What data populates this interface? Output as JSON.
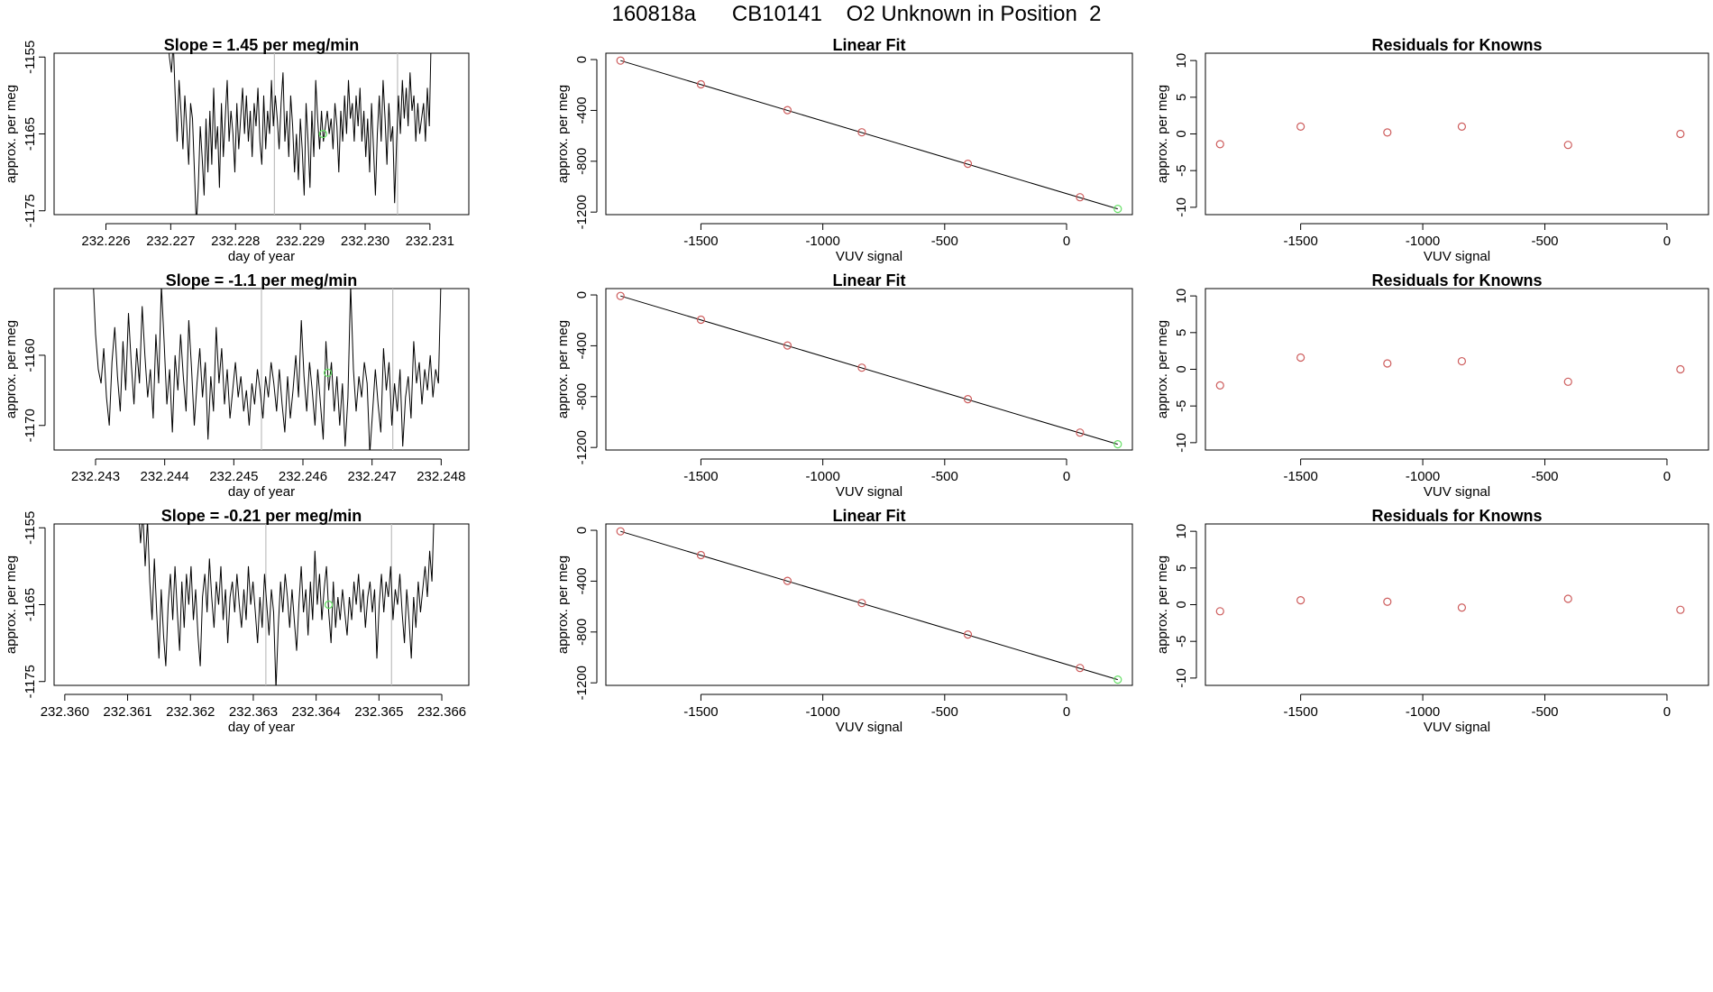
{
  "page_title": "160818a      CB10141    O2 Unknown in Position  2",
  "colors": {
    "axis": "#000000",
    "trace": "#000000",
    "vline": "#bebebe",
    "point_red": "#cd5c5c",
    "point_green": "#66e066"
  },
  "chart_data": [
    {
      "type": "line",
      "name": "timeseries-row-1",
      "title": "Slope =  1.45  per meg/min",
      "xlabel": "day of year",
      "ylabel": "approx. per meg",
      "xlim": [
        232.2252,
        232.2316
      ],
      "ylim": [
        -1175.5,
        -1154.5
      ],
      "xticks": [
        232.226,
        232.227,
        232.228,
        232.229,
        232.23,
        232.231
      ],
      "xtick_labels": [
        "232.226",
        "232.227",
        "232.228",
        "232.229",
        "232.230",
        "232.231"
      ],
      "yticks": [
        -1155,
        -1165,
        -1175
      ],
      "ytick_labels": [
        "-1155",
        "-1165",
        "-1175"
      ],
      "vlines": [
        232.2286,
        232.2305
      ],
      "trace": {
        "x_start": 232.22695,
        "x_end": 232.23102,
        "y": [
          -1152,
          -1155,
          -1157,
          -1153,
          -1160,
          -1166,
          -1158,
          -1162,
          -1167,
          -1160,
          -1164,
          -1169,
          -1161,
          -1163,
          -1170,
          -1177,
          -1172,
          -1164,
          -1168,
          -1173,
          -1163,
          -1170,
          -1162,
          -1169,
          -1159,
          -1167,
          -1164,
          -1172,
          -1161,
          -1168,
          -1163,
          -1158,
          -1166,
          -1162,
          -1165,
          -1170,
          -1161,
          -1167,
          -1163,
          -1159,
          -1165,
          -1160,
          -1166,
          -1162,
          -1168,
          -1161,
          -1164,
          -1159,
          -1166,
          -1169,
          -1160,
          -1167,
          -1162,
          -1165,
          -1158,
          -1164,
          -1160,
          -1163,
          -1167,
          -1161,
          -1157,
          -1166,
          -1162,
          -1168,
          -1160,
          -1164,
          -1170,
          -1165,
          -1171,
          -1163,
          -1167,
          -1173,
          -1161,
          -1166,
          -1172,
          -1162,
          -1168,
          -1158,
          -1163,
          -1167,
          -1162,
          -1166,
          -1164,
          -1162,
          -1165,
          -1163,
          -1167,
          -1161,
          -1164,
          -1170,
          -1162,
          -1166,
          -1160,
          -1165,
          -1158,
          -1163,
          -1161,
          -1166,
          -1160,
          -1164,
          -1159,
          -1166,
          -1162,
          -1168,
          -1163,
          -1170,
          -1161,
          -1167,
          -1173,
          -1165,
          -1160,
          -1166,
          -1158,
          -1163,
          -1169,
          -1161,
          -1166,
          -1164,
          -1174,
          -1166,
          -1160,
          -1165,
          -1158,
          -1163,
          -1159,
          -1164,
          -1157,
          -1162,
          -1160,
          -1166,
          -1161,
          -1165,
          -1163,
          -1161,
          -1166,
          -1159,
          -1164,
          -1152
        ]
      },
      "highlight": {
        "x": 232.22935,
        "y": -1165
      }
    },
    {
      "type": "scatter",
      "name": "linear-fit-row-1",
      "title": "Linear Fit",
      "xlabel": "VUV signal",
      "ylabel": "approx. per meg",
      "xlim": [
        -1890,
        270
      ],
      "ylim": [
        -1220,
        50
      ],
      "xticks": [
        -1500,
        -1000,
        -500,
        0
      ],
      "xtick_labels": [
        "-1500",
        "-1000",
        "-500",
        "0"
      ],
      "yticks": [
        0,
        -400,
        -800,
        -1200
      ],
      "ytick_labels": [
        "0",
        "-400",
        "-800",
        "-1200"
      ],
      "fit_line": {
        "x": [
          -1830,
          210
        ],
        "y": [
          -8,
          -1175
        ]
      },
      "points_red": {
        "x": [
          -1830,
          -1500,
          -1145,
          -840,
          -405,
          55
        ],
        "y": [
          -8,
          -195,
          -398,
          -572,
          -820,
          -1083
        ]
      },
      "points_green": {
        "x": [
          210
        ],
        "y": [
          -1175
        ]
      }
    },
    {
      "type": "scatter",
      "name": "residuals-row-1",
      "title": "Residuals for Knowns",
      "xlabel": "VUV signal",
      "ylabel": "approx. per meg",
      "xlim": [
        -1890,
        170
      ],
      "ylim": [
        -11,
        11
      ],
      "xticks": [
        -1500,
        -1000,
        -500,
        0
      ],
      "xtick_labels": [
        "-1500",
        "-1000",
        "-500",
        "0"
      ],
      "yticks": [
        10,
        5,
        0,
        -5,
        -10
      ],
      "ytick_labels": [
        "10",
        "5",
        "0",
        "-5",
        "-10"
      ],
      "points_red": {
        "x": [
          -1830,
          -1500,
          -1145,
          -840,
          -405,
          55
        ],
        "y": [
          -1.4,
          1.0,
          0.2,
          1.0,
          -1.5,
          0.0
        ]
      }
    },
    {
      "type": "line",
      "name": "timeseries-row-2",
      "title": "Slope =  -1.1  per meg/min",
      "xlabel": "day of year",
      "ylabel": "approx. per meg",
      "xlim": [
        232.2424,
        232.2484
      ],
      "ylim": [
        -1173.5,
        -1150.5
      ],
      "xticks": [
        232.243,
        232.244,
        232.245,
        232.246,
        232.247,
        232.248
      ],
      "xtick_labels": [
        "232.243",
        "232.244",
        "232.245",
        "232.246",
        "232.247",
        "232.248"
      ],
      "yticks": [
        -1160,
        -1170
      ],
      "ytick_labels": [
        "-1160",
        "-1170"
      ],
      "vlines": [
        232.2454,
        232.2473
      ],
      "trace": {
        "x_start": 232.24296,
        "x_end": 232.248,
        "y": [
          -1148,
          -1157,
          -1162,
          -1164,
          -1159,
          -1166,
          -1170,
          -1161,
          -1156,
          -1163,
          -1168,
          -1158,
          -1165,
          -1154,
          -1161,
          -1167,
          -1159,
          -1164,
          -1153,
          -1160,
          -1166,
          -1162,
          -1169,
          -1157,
          -1164,
          -1150,
          -1158,
          -1167,
          -1162,
          -1171,
          -1160,
          -1165,
          -1157,
          -1163,
          -1168,
          -1155,
          -1162,
          -1170,
          -1164,
          -1159,
          -1166,
          -1161,
          -1172,
          -1163,
          -1168,
          -1156,
          -1164,
          -1159,
          -1167,
          -1162,
          -1169,
          -1165,
          -1161,
          -1166,
          -1163,
          -1168,
          -1165,
          -1170,
          -1164,
          -1167,
          -1162,
          -1165,
          -1169,
          -1163,
          -1166,
          -1161,
          -1164,
          -1168,
          -1162,
          -1167,
          -1171,
          -1163,
          -1169,
          -1165,
          -1160,
          -1166,
          -1155,
          -1163,
          -1168,
          -1161,
          -1165,
          -1170,
          -1162,
          -1167,
          -1172,
          -1158,
          -1165,
          -1161,
          -1168,
          -1163,
          -1170,
          -1164,
          -1173,
          -1166,
          -1150,
          -1162,
          -1168,
          -1163,
          -1166,
          -1161,
          -1164,
          -1174,
          -1168,
          -1162,
          -1167,
          -1171,
          -1159,
          -1165,
          -1161,
          -1170,
          -1164,
          -1168,
          -1162,
          -1173,
          -1166,
          -1163,
          -1169,
          -1158,
          -1164,
          -1161,
          -1167,
          -1162,
          -1165,
          -1160,
          -1166,
          -1162,
          -1164,
          -1148
        ]
      },
      "highlight": {
        "x": 232.24636,
        "y": -1162.5
      }
    },
    {
      "type": "scatter",
      "name": "linear-fit-row-2",
      "title": "Linear Fit",
      "xlabel": "VUV signal",
      "ylabel": "approx. per meg",
      "xlim": [
        -1890,
        270
      ],
      "ylim": [
        -1220,
        50
      ],
      "xticks": [
        -1500,
        -1000,
        -500,
        0
      ],
      "xtick_labels": [
        "-1500",
        "-1000",
        "-500",
        "0"
      ],
      "yticks": [
        0,
        -400,
        -800,
        -1200
      ],
      "ytick_labels": [
        "0",
        "-400",
        "-800",
        "-1200"
      ],
      "fit_line": {
        "x": [
          -1830,
          210
        ],
        "y": [
          -8,
          -1175
        ]
      },
      "points_red": {
        "x": [
          -1830,
          -1500,
          -1145,
          -840,
          -405,
          55
        ],
        "y": [
          -8,
          -195,
          -398,
          -572,
          -820,
          -1083
        ]
      },
      "points_green": {
        "x": [
          210
        ],
        "y": [
          -1175
        ]
      }
    },
    {
      "type": "scatter",
      "name": "residuals-row-2",
      "title": "Residuals for Knowns",
      "xlabel": "VUV signal",
      "ylabel": "approx. per meg",
      "xlim": [
        -1890,
        170
      ],
      "ylim": [
        -11,
        11
      ],
      "xticks": [
        -1500,
        -1000,
        -500,
        0
      ],
      "xtick_labels": [
        "-1500",
        "-1000",
        "-500",
        "0"
      ],
      "yticks": [
        10,
        5,
        0,
        -5,
        -10
      ],
      "ytick_labels": [
        "10",
        "5",
        "0",
        "-5",
        "-10"
      ],
      "points_red": {
        "x": [
          -1830,
          -1500,
          -1145,
          -840,
          -405,
          55
        ],
        "y": [
          -2.2,
          1.6,
          0.8,
          1.1,
          -1.7,
          0.0
        ]
      }
    },
    {
      "type": "line",
      "name": "timeseries-row-3",
      "title": "Slope =  -0.21  per meg/min",
      "xlabel": "day of year",
      "ylabel": "approx. per meg",
      "xlim": [
        232.35983,
        232.36643
      ],
      "ylim": [
        -1175.5,
        -1154.5
      ],
      "xticks": [
        232.36,
        232.361,
        232.362,
        232.363,
        232.364,
        232.365,
        232.366
      ],
      "xtick_labels": [
        "232.360",
        "232.361",
        "232.362",
        "232.363",
        "232.364",
        "232.365",
        "232.366"
      ],
      "yticks": [
        -1155,
        -1165,
        -1175
      ],
      "ytick_labels": [
        "-1155",
        "-1165",
        "-1175"
      ],
      "vlines": [
        232.3632,
        232.3652
      ],
      "trace": {
        "x_start": 232.36117,
        "x_end": 232.36588,
        "y": [
          -1152,
          -1157,
          -1153,
          -1160,
          -1154,
          -1162,
          -1167,
          -1159,
          -1166,
          -1172,
          -1163,
          -1169,
          -1173,
          -1165,
          -1161,
          -1167,
          -1160,
          -1166,
          -1171,
          -1162,
          -1168,
          -1161,
          -1165,
          -1160,
          -1167,
          -1163,
          -1169,
          -1173,
          -1164,
          -1161,
          -1166,
          -1159,
          -1164,
          -1168,
          -1162,
          -1165,
          -1160,
          -1167,
          -1163,
          -1170,
          -1164,
          -1162,
          -1166,
          -1161,
          -1165,
          -1168,
          -1163,
          -1167,
          -1160,
          -1165,
          -1162,
          -1166,
          -1170,
          -1164,
          -1168,
          -1161,
          -1165,
          -1169,
          -1163,
          -1166,
          -1176,
          -1168,
          -1162,
          -1166,
          -1161,
          -1164,
          -1168,
          -1163,
          -1167,
          -1171,
          -1165,
          -1160,
          -1166,
          -1163,
          -1169,
          -1162,
          -1167,
          -1158,
          -1165,
          -1161,
          -1167,
          -1163,
          -1160,
          -1166,
          -1170,
          -1162,
          -1168,
          -1164,
          -1167,
          -1163,
          -1166,
          -1169,
          -1164,
          -1167,
          -1162,
          -1165,
          -1161,
          -1166,
          -1163,
          -1168,
          -1164,
          -1162,
          -1166,
          -1163,
          -1172,
          -1165,
          -1161,
          -1166,
          -1162,
          -1164,
          -1160,
          -1167,
          -1163,
          -1165,
          -1161,
          -1166,
          -1170,
          -1163,
          -1167,
          -1172,
          -1164,
          -1168,
          -1162,
          -1166,
          -1163,
          -1160,
          -1164,
          -1158,
          -1162,
          -1152
        ]
      },
      "highlight": {
        "x": 232.3642,
        "y": -1165
      }
    },
    {
      "type": "scatter",
      "name": "linear-fit-row-3",
      "title": "Linear Fit",
      "xlabel": "VUV signal",
      "ylabel": "approx. per meg",
      "xlim": [
        -1890,
        270
      ],
      "ylim": [
        -1220,
        50
      ],
      "xticks": [
        -1500,
        -1000,
        -500,
        0
      ],
      "xtick_labels": [
        "-1500",
        "-1000",
        "-500",
        "0"
      ],
      "yticks": [
        0,
        -400,
        -800,
        -1200
      ],
      "ytick_labels": [
        "0",
        "-400",
        "-800",
        "-1200"
      ],
      "fit_line": {
        "x": [
          -1830,
          210
        ],
        "y": [
          -8,
          -1175
        ]
      },
      "points_red": {
        "x": [
          -1830,
          -1500,
          -1145,
          -840,
          -405,
          55
        ],
        "y": [
          -8,
          -195,
          -398,
          -572,
          -820,
          -1083
        ]
      },
      "points_green": {
        "x": [
          210
        ],
        "y": [
          -1175
        ]
      }
    },
    {
      "type": "scatter",
      "name": "residuals-row-3",
      "title": "Residuals for Knowns",
      "xlabel": "VUV signal",
      "ylabel": "approx. per meg",
      "xlim": [
        -1890,
        170
      ],
      "ylim": [
        -11,
        11
      ],
      "xticks": [
        -1500,
        -1000,
        -500,
        0
      ],
      "xtick_labels": [
        "-1500",
        "-1000",
        "-500",
        "0"
      ],
      "yticks": [
        10,
        5,
        0,
        -5,
        -10
      ],
      "ytick_labels": [
        "10",
        "5",
        "0",
        "-5",
        "-10"
      ],
      "points_red": {
        "x": [
          -1830,
          -1500,
          -1145,
          -840,
          -405,
          55
        ],
        "y": [
          -0.9,
          0.6,
          0.4,
          -0.4,
          0.8,
          -0.7
        ]
      }
    }
  ]
}
